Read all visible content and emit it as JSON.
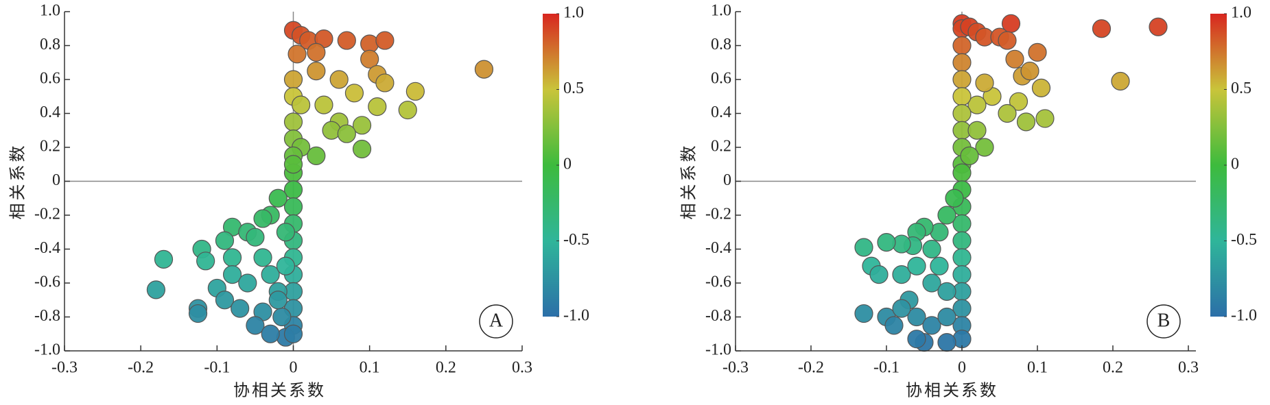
{
  "chart_data": [
    {
      "type": "scatter",
      "xlabel": "协相关系数",
      "ylabel": "相关系数",
      "annotation": "A",
      "xlim": [
        -0.3,
        0.3
      ],
      "ylim": [
        -1,
        1
      ],
      "xticks": [
        -0.3,
        -0.2,
        -0.1,
        0,
        0.1,
        0.2,
        0.3
      ],
      "yticks": [
        {
          "value": -1,
          "label": "-1.0"
        },
        -0.8,
        -0.6,
        -0.4,
        -0.2,
        0,
        0.2,
        0.4,
        0.6,
        0.8,
        {
          "value": 1,
          "label": "1.0"
        }
      ],
      "hline": 0,
      "vline": 0,
      "colormap": [
        "#2c6fa8",
        "#2fb59a",
        "#3dbb3d",
        "#c9c43a",
        "#d8261f"
      ],
      "colorbar": {
        "lim": [
          -1,
          1
        ],
        "ticks": [
          {
            "value": -1,
            "label": "-1.0"
          },
          -0.5,
          0,
          0.5,
          {
            "value": 1,
            "label": "1.0"
          }
        ]
      },
      "x": [
        0.0,
        0.01,
        0.02,
        0.04,
        0.07,
        0.1,
        0.12,
        0.1,
        0.03,
        0.005,
        0.11,
        0.12,
        0.25,
        0.16,
        0.15,
        0.11,
        0.09,
        0.09,
        0.08,
        0.06,
        0.03,
        0.0,
        0.0,
        0.01,
        0.04,
        0.06,
        0.05,
        0.07,
        0.0,
        0.0,
        0.01,
        0.03,
        0.0,
        0.0,
        0.0,
        0.0,
        0.0,
        0.0,
        0.0,
        0.0,
        0.0,
        0.0,
        0.0,
        0.0,
        -0.01,
        0.0,
        -0.02,
        -0.03,
        -0.04,
        -0.08,
        -0.06,
        -0.05,
        -0.09,
        -0.12,
        -0.115,
        -0.08,
        -0.04,
        -0.17,
        -0.18,
        -0.1,
        -0.08,
        -0.06,
        -0.03,
        -0.02,
        -0.09,
        -0.07,
        -0.04,
        -0.125,
        -0.125,
        -0.05,
        -0.03,
        -0.015,
        -0.02,
        -0.01,
        -0.01
      ],
      "values": [
        0.89,
        0.86,
        0.83,
        0.84,
        0.83,
        0.81,
        0.83,
        0.72,
        0.76,
        0.75,
        0.63,
        0.58,
        0.66,
        0.53,
        0.42,
        0.44,
        0.33,
        0.19,
        0.52,
        0.6,
        0.65,
        0.6,
        0.5,
        0.45,
        0.45,
        0.35,
        0.3,
        0.28,
        0.35,
        0.25,
        0.2,
        0.15,
        0.15,
        0.05,
        0.1,
        -0.05,
        -0.15,
        -0.25,
        -0.35,
        -0.45,
        -0.55,
        -0.65,
        -0.75,
        -0.85,
        -0.92,
        -0.9,
        -0.1,
        -0.2,
        -0.22,
        -0.27,
        -0.3,
        -0.33,
        -0.35,
        -0.4,
        -0.47,
        -0.45,
        -0.45,
        -0.46,
        -0.64,
        -0.63,
        -0.55,
        -0.6,
        -0.55,
        -0.65,
        -0.7,
        -0.75,
        -0.77,
        -0.75,
        -0.78,
        -0.85,
        -0.9,
        -0.8,
        -0.7,
        -0.5,
        -0.3
      ]
    },
    {
      "type": "scatter",
      "xlabel": "协相关系数",
      "ylabel": "相关系数",
      "annotation": "B",
      "xlim": [
        -0.3,
        0.31
      ],
      "ylim": [
        -1,
        1
      ],
      "xticks": [
        -0.3,
        -0.2,
        -0.1,
        0,
        0.1,
        0.2,
        0.3
      ],
      "yticks": [
        {
          "value": -1,
          "label": "-1.0"
        },
        -0.8,
        -0.6,
        -0.4,
        -0.2,
        0,
        0.2,
        0.4,
        0.6,
        0.8,
        {
          "value": 1,
          "label": "1.0"
        }
      ],
      "hline": 0,
      "vline": 0,
      "colormap": [
        "#2c6fa8",
        "#2fb59a",
        "#3dbb3d",
        "#c9c43a",
        "#d8261f"
      ],
      "colorbar": {
        "lim": [
          -1,
          1
        ],
        "ticks": [
          {
            "value": -1,
            "label": "-1.0"
          },
          -0.5,
          0,
          0.5,
          {
            "value": 1,
            "label": "1.0"
          }
        ]
      },
      "x": [
        0.0,
        0.0,
        0.01,
        0.02,
        0.03,
        0.065,
        0.05,
        0.06,
        0.185,
        0.26,
        0.21,
        0.1,
        0.105,
        0.11,
        0.085,
        0.07,
        0.08,
        0.09,
        0.075,
        0.06,
        0.04,
        0.03,
        0.02,
        0.0,
        0.0,
        0.0,
        0.0,
        0.0,
        0.0,
        0.0,
        0.0,
        0.02,
        0.03,
        0.01,
        0.0,
        0.0,
        0.0,
        0.0,
        0.0,
        0.0,
        0.0,
        0.0,
        0.0,
        0.0,
        0.0,
        -0.02,
        -0.05,
        -0.06,
        -0.01,
        -0.02,
        -0.03,
        -0.05,
        -0.06,
        -0.04,
        -0.065,
        -0.08,
        -0.1,
        -0.13,
        -0.12,
        -0.11,
        -0.08,
        -0.06,
        -0.04,
        -0.02,
        -0.07,
        -0.1,
        -0.09,
        -0.13,
        -0.06,
        -0.04,
        -0.02,
        -0.08,
        -0.03
      ],
      "values": [
        0.93,
        0.9,
        0.91,
        0.88,
        0.85,
        0.93,
        0.85,
        0.83,
        0.9,
        0.91,
        0.59,
        0.76,
        0.55,
        0.37,
        0.35,
        0.72,
        0.62,
        0.65,
        0.47,
        0.4,
        0.5,
        0.58,
        0.45,
        0.8,
        0.7,
        0.6,
        0.5,
        0.4,
        0.3,
        0.2,
        0.1,
        0.3,
        0.2,
        0.15,
        0.05,
        -0.05,
        -0.15,
        -0.25,
        -0.35,
        -0.45,
        -0.55,
        -0.65,
        -0.75,
        -0.85,
        -0.93,
        -0.95,
        -0.95,
        -0.93,
        -0.1,
        -0.2,
        -0.3,
        -0.27,
        -0.3,
        -0.4,
        -0.38,
        -0.37,
        -0.36,
        -0.39,
        -0.5,
        -0.55,
        -0.55,
        -0.5,
        -0.6,
        -0.65,
        -0.7,
        -0.8,
        -0.85,
        -0.78,
        -0.8,
        -0.85,
        -0.8,
        -0.75,
        -0.5
      ]
    }
  ]
}
